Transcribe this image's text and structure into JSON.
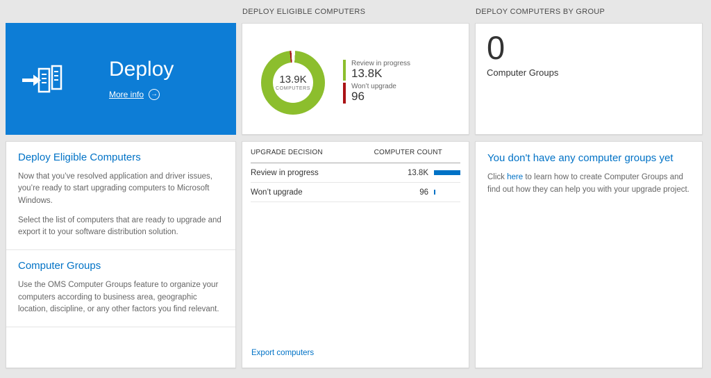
{
  "colors": {
    "background": "#e7e7e7",
    "tile_blue": "#0d7dd6",
    "link_blue": "#0072c6",
    "donut_green": "#8cbe2d",
    "alert_red": "#aa1316",
    "bar_blue": "#0072c6"
  },
  "icons": {
    "arrow_right": "→",
    "deploy_icon": "deploy-stack-arrow"
  },
  "left": {
    "tile": {
      "title": "Deploy",
      "more_info": "More info"
    },
    "sections": [
      {
        "heading": "Deploy Eligible Computers",
        "paragraphs": [
          "Now that you’ve resolved application and driver issues, you’re ready to start upgrading computers to Microsoft Windows.",
          "Select the list of computers that are ready to upgrade and export it to your software distribution solution."
        ]
      },
      {
        "heading": "Computer Groups",
        "paragraphs": [
          "Use the OMS Computer Groups feature to organize your computers according to business area, geographic location, discipline, or any other factors you find relevant."
        ]
      }
    ]
  },
  "middle": {
    "header": "DEPLOY ELIGIBLE COMPUTERS",
    "donut": {
      "value": "13.9K",
      "label": "COMPUTERS"
    },
    "legend": [
      {
        "label": "Review in progress",
        "value": "13.8K",
        "color": "#8cbe2d"
      },
      {
        "label": "Won’t upgrade",
        "value": "96",
        "color": "#aa1316"
      }
    ],
    "table": {
      "columns": [
        "UPGRADE DECISION",
        "COMPUTER COUNT"
      ],
      "rows": [
        {
          "label": "Review in progress",
          "value": "13.8K",
          "bar_pct": 100
        },
        {
          "label": "Won’t upgrade",
          "value": "96",
          "bar_pct": 4
        }
      ]
    },
    "export_link": "Export computers"
  },
  "right": {
    "header": "DEPLOY COMPUTERS BY GROUP",
    "count": "0",
    "count_label": "Computer Groups",
    "empty": {
      "heading": "You don't have any computer groups yet",
      "text_before": "Click ",
      "link": "here",
      "text_after": " to learn how to create Computer Groups and find out how they can help you with your upgrade project."
    }
  },
  "chart_data": {
    "type": "pie",
    "title": "Deploy Eligible Computers",
    "labels": [
      "Review in progress",
      "Won't upgrade"
    ],
    "values": [
      13800,
      96
    ],
    "total_label": "13.9K COMPUTERS",
    "colors": [
      "#8cbe2d",
      "#aa1316"
    ],
    "legend_position": "right"
  }
}
